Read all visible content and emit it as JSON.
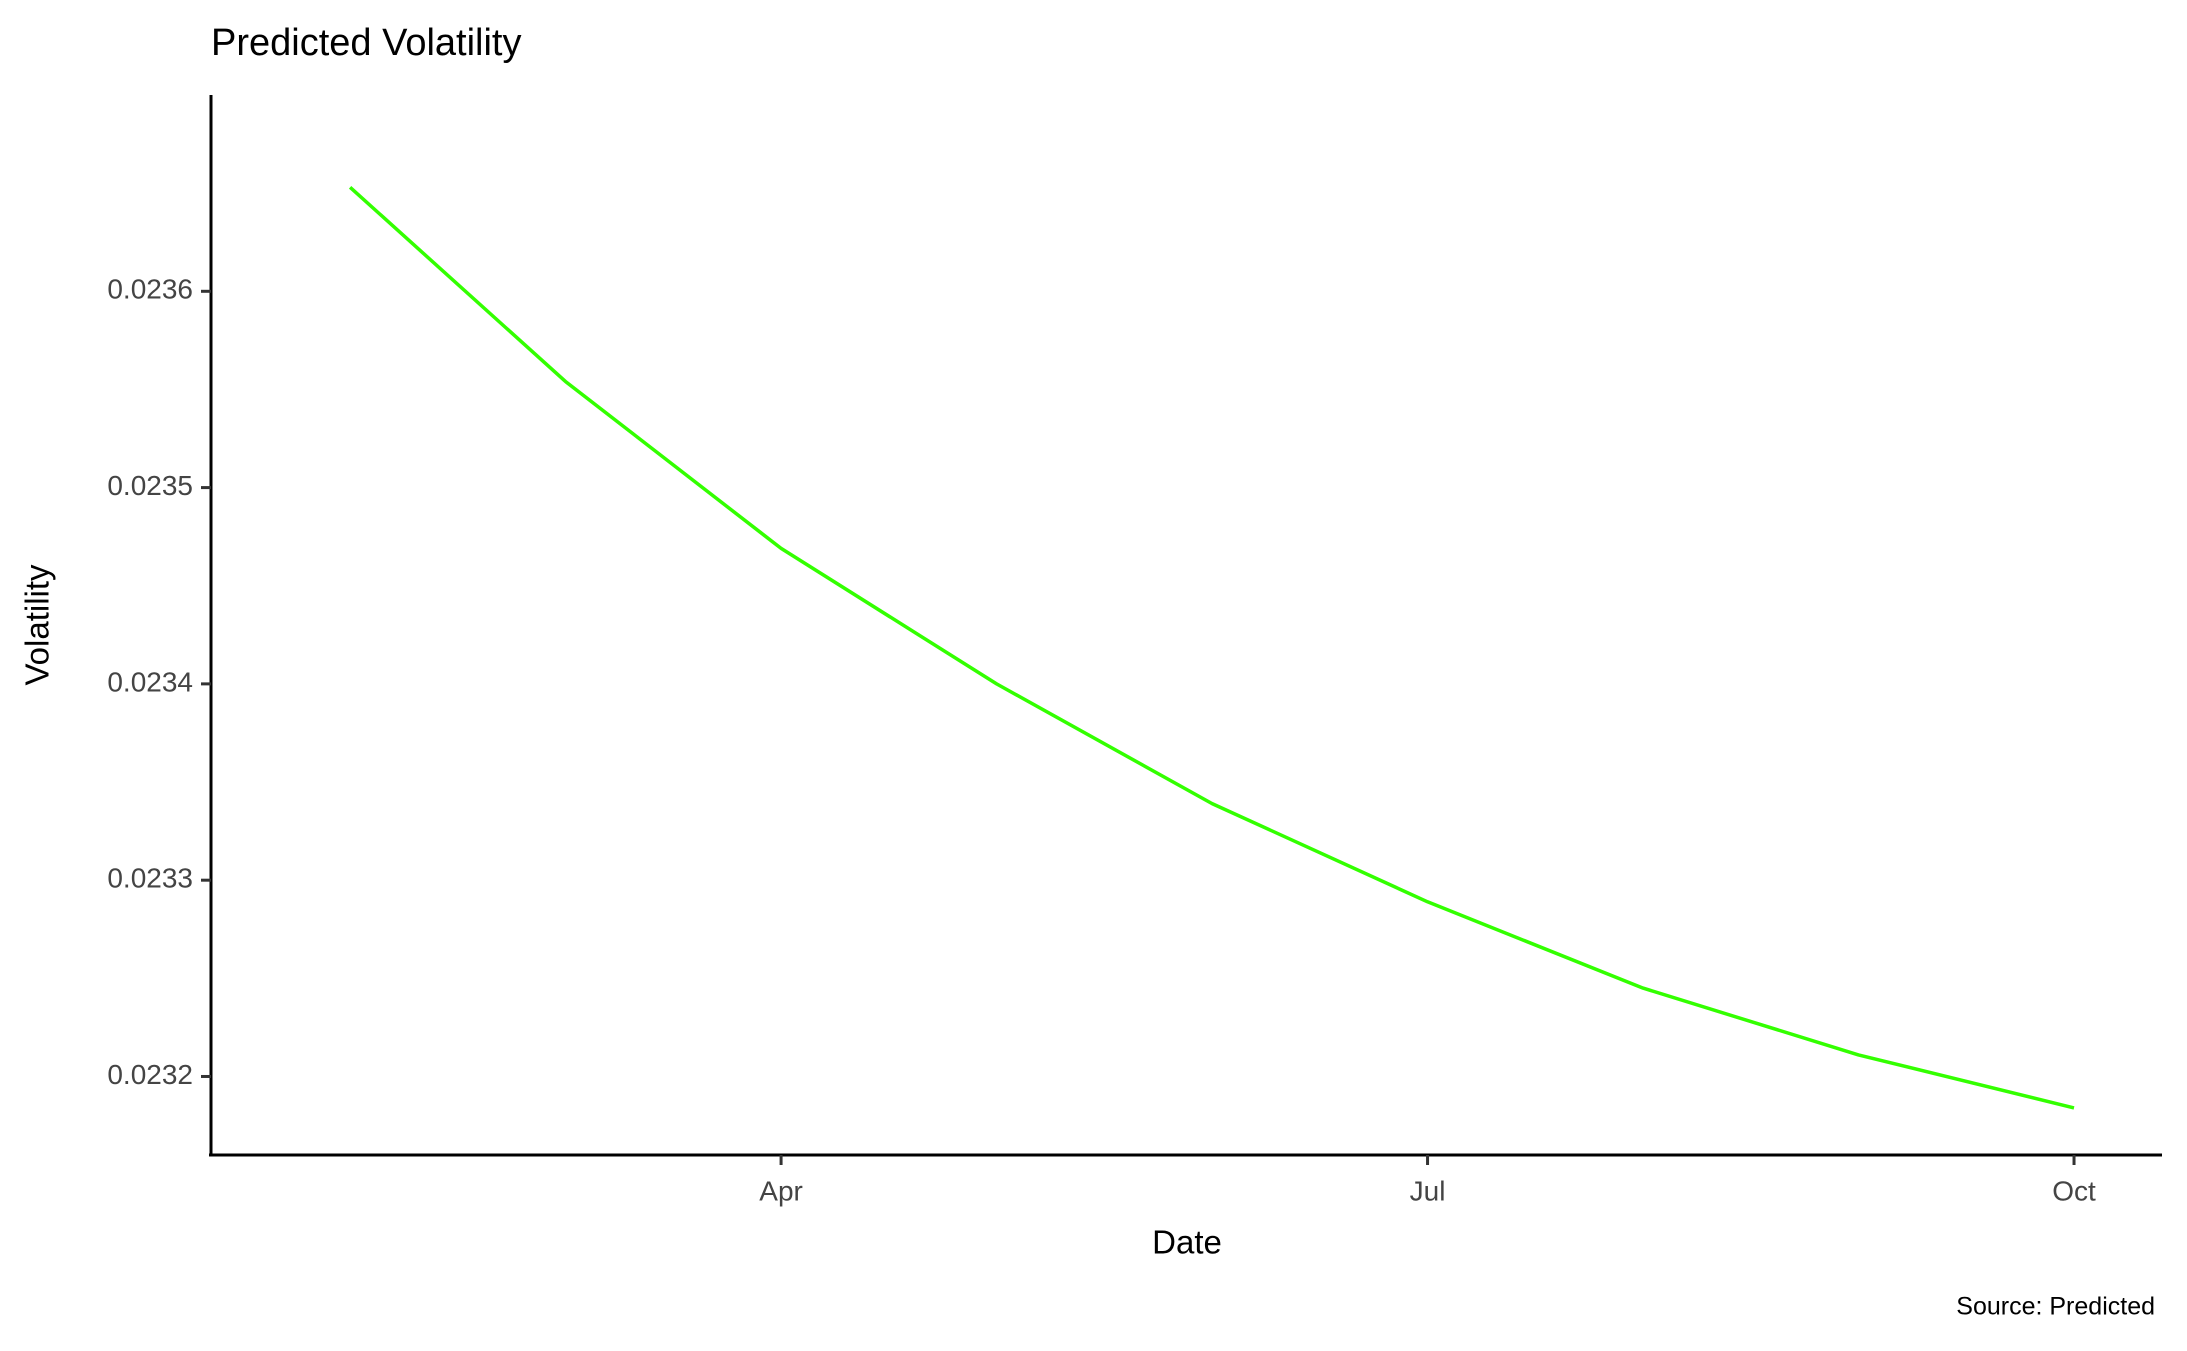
{
  "chart_data": {
    "type": "line",
    "title": "Predicted Volatility",
    "x_label": "Date",
    "y_label": "Volatility",
    "caption": "Source: Predicted",
    "categories": [
      null,
      null,
      "Apr",
      null,
      null,
      "Jul",
      null,
      null,
      "Oct"
    ],
    "series": [
      {
        "name": "Volatility",
        "color": "#33ff00",
        "values": [
          0.023653,
          0.023554,
          0.023469,
          0.0234,
          0.023339,
          0.023289,
          0.023245,
          0.023211,
          0.023184
        ]
      }
    ],
    "ylim": [
      0.02316,
      0.0237
    ],
    "yticks": [
      0.0232,
      0.0233,
      0.0234,
      0.0235,
      0.0236
    ],
    "legend": false,
    "grid": false
  }
}
